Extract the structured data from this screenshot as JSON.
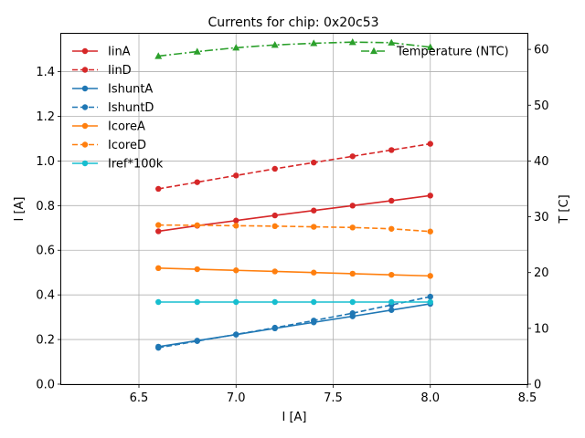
{
  "chart_data": {
    "type": "line",
    "title": "Currents for chip: 0x20c53",
    "xlabel": "I [A]",
    "ylabel": "I [A]",
    "ylabel_right": "T [C]",
    "xlim": [
      6.1,
      8.5
    ],
    "ylim": [
      0,
      1.57
    ],
    "ylim_right": [
      0,
      62.8
    ],
    "grid": true,
    "x_ticks": [
      6.5,
      7.0,
      7.5,
      8.0,
      8.5
    ],
    "y_ticks": [
      0.0,
      0.2,
      0.4,
      0.6,
      0.8,
      1.0,
      1.2,
      1.4
    ],
    "y_ticks_right": [
      0,
      10,
      20,
      30,
      40,
      50,
      60
    ],
    "x": [
      6.6,
      6.8,
      7.0,
      7.2,
      7.4,
      7.6,
      7.8,
      8.0
    ],
    "series": [
      {
        "name": "IinA",
        "color": "#d62728",
        "style": "solid",
        "marker": "circle",
        "axis": "left",
        "values": [
          0.685,
          0.71,
          0.733,
          0.756,
          0.778,
          0.8,
          0.822,
          0.845
        ]
      },
      {
        "name": "IinD",
        "color": "#d62728",
        "style": "dashed",
        "marker": "circle",
        "axis": "left",
        "values": [
          0.875,
          0.905,
          0.935,
          0.965,
          0.993,
          1.021,
          1.049,
          1.077
        ]
      },
      {
        "name": "IshuntA",
        "color": "#1f77b4",
        "style": "solid",
        "marker": "circle",
        "axis": "left",
        "values": [
          0.168,
          0.195,
          0.222,
          0.25,
          0.277,
          0.304,
          0.332,
          0.36
        ]
      },
      {
        "name": "IshuntD",
        "color": "#1f77b4",
        "style": "dashed",
        "marker": "circle",
        "axis": "left",
        "values": [
          0.163,
          0.193,
          0.223,
          0.253,
          0.285,
          0.318,
          0.355,
          0.392
        ]
      },
      {
        "name": "IcoreA",
        "color": "#ff7f0e",
        "style": "solid",
        "marker": "circle",
        "axis": "left",
        "values": [
          0.52,
          0.515,
          0.51,
          0.505,
          0.5,
          0.495,
          0.49,
          0.485
        ]
      },
      {
        "name": "IcoreD",
        "color": "#ff7f0e",
        "style": "dashed",
        "marker": "circle",
        "axis": "left",
        "values": [
          0.713,
          0.712,
          0.71,
          0.708,
          0.705,
          0.702,
          0.696,
          0.684
        ]
      },
      {
        "name": "Iref*100k",
        "color": "#17becf",
        "style": "solid",
        "marker": "circle",
        "axis": "left",
        "values": [
          0.368,
          0.368,
          0.368,
          0.368,
          0.368,
          0.368,
          0.368,
          0.368
        ]
      },
      {
        "name": "Temperature (NTC)",
        "color": "#2ca02c",
        "style": "dashdot",
        "marker": "triangle",
        "axis": "right",
        "values": [
          58.8,
          59.6,
          60.3,
          60.8,
          61.1,
          61.3,
          61.2,
          60.4
        ]
      }
    ],
    "legend_left": [
      "IinA",
      "IinD",
      "IshuntA",
      "IshuntD",
      "IcoreA",
      "IcoreD",
      "Iref*100k"
    ],
    "legend_right": [
      "Temperature (NTC)"
    ]
  }
}
